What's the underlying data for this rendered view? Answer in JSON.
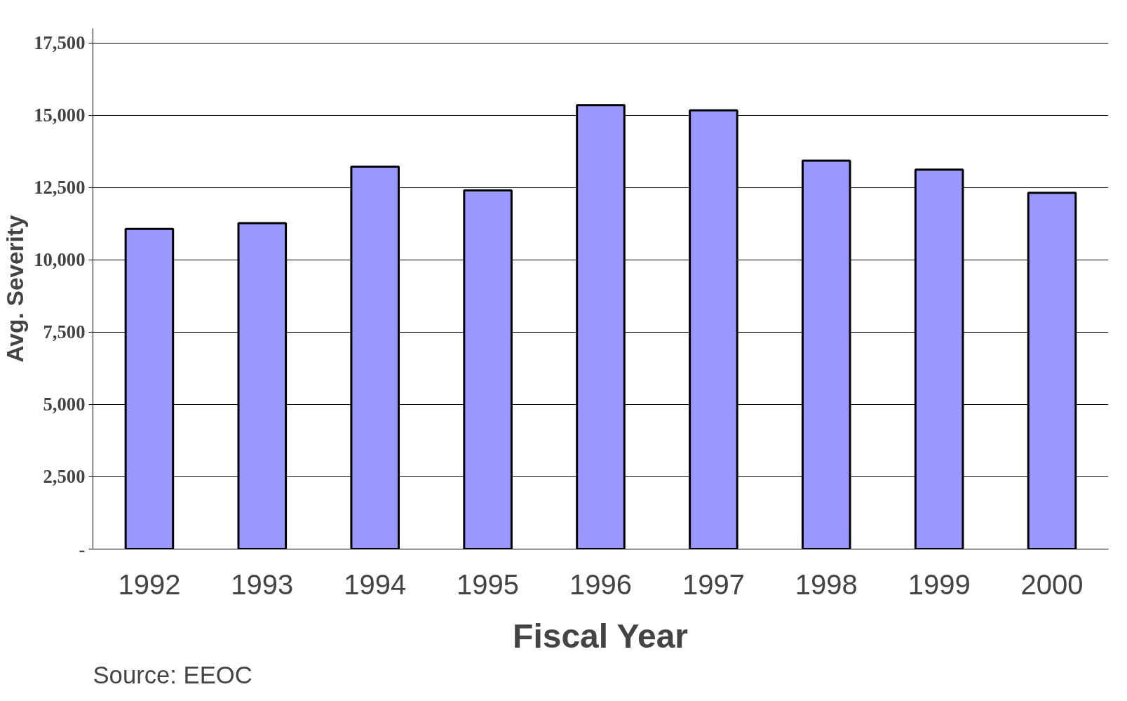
{
  "chart_data": {
    "type": "bar",
    "xlabel": "Fiscal Year",
    "ylabel": "Avg. Severity",
    "categories": [
      "1992",
      "1993",
      "1994",
      "1995",
      "1996",
      "1997",
      "1998",
      "1999",
      "2000"
    ],
    "values": [
      11070,
      11270,
      13220,
      12400,
      15350,
      15170,
      13430,
      13120,
      12320
    ],
    "color": "#9999ff",
    "ylim": [
      0,
      18000
    ],
    "yticks": [
      {
        "value": 0,
        "label": "-"
      },
      {
        "value": 2500,
        "label": "2,500"
      },
      {
        "value": 5000,
        "label": "5,000"
      },
      {
        "value": 7500,
        "label": "7,500"
      },
      {
        "value": 10000,
        "label": "10,000"
      },
      {
        "value": 12500,
        "label": "12,500"
      },
      {
        "value": 15000,
        "label": "15,000"
      },
      {
        "value": 17500,
        "label": "17,500"
      }
    ],
    "grid": "y",
    "annotations": [
      "Source:  EEOC"
    ]
  }
}
